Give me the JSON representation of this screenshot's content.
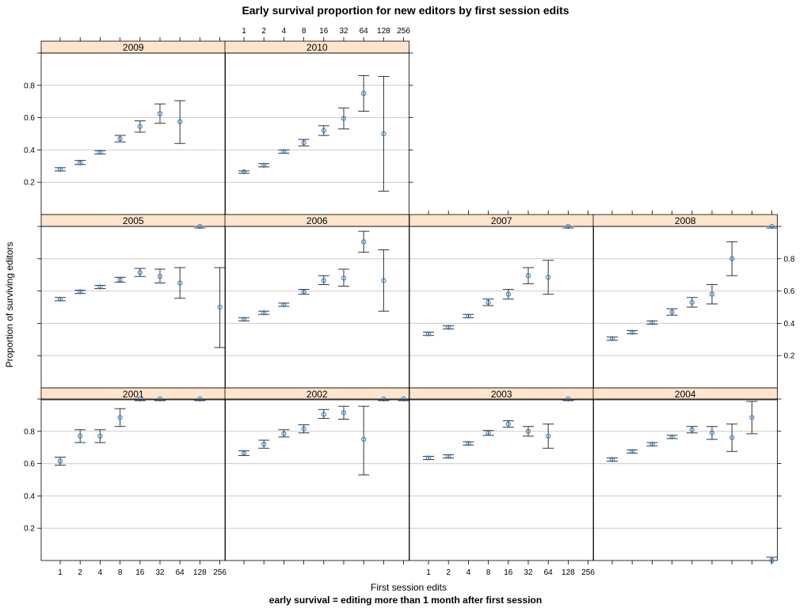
{
  "chart_data": {
    "type": "scatter",
    "title": "Early survival proportion for new editors by first session edits",
    "xlabel": "First session edits",
    "ylabel": "Proportion of surviving editors",
    "subtitle": "early survival = editing more than 1 month after first session",
    "x_ticks": [
      "1",
      "2",
      "4",
      "8",
      "16",
      "32",
      "64",
      "128",
      "256"
    ],
    "y_ticks": [
      "0.2",
      "0.4",
      "0.6",
      "0.8"
    ],
    "ylim": [
      0,
      1
    ],
    "grid": true,
    "point_color": "#1f78d2",
    "strip_color": "#ffe5cc",
    "panels": [
      {
        "year": "2009",
        "points": [
          {
            "x": "1",
            "y": 0.28,
            "lo": 0.27,
            "hi": 0.29
          },
          {
            "x": "2",
            "y": 0.32,
            "lo": 0.31,
            "hi": 0.335
          },
          {
            "x": "4",
            "y": 0.385,
            "lo": 0.375,
            "hi": 0.395
          },
          {
            "x": "8",
            "y": 0.47,
            "lo": 0.45,
            "hi": 0.49
          },
          {
            "x": "16",
            "y": 0.545,
            "lo": 0.51,
            "hi": 0.58
          },
          {
            "x": "32",
            "y": 0.625,
            "lo": 0.565,
            "hi": 0.685
          },
          {
            "x": "64",
            "y": 0.575,
            "lo": 0.44,
            "hi": 0.705
          }
        ]
      },
      {
        "year": "2010",
        "points": [
          {
            "x": "1",
            "y": 0.265,
            "lo": 0.255,
            "hi": 0.27
          },
          {
            "x": "2",
            "y": 0.305,
            "lo": 0.295,
            "hi": 0.315
          },
          {
            "x": "4",
            "y": 0.39,
            "lo": 0.38,
            "hi": 0.4
          },
          {
            "x": "8",
            "y": 0.445,
            "lo": 0.425,
            "hi": 0.465
          },
          {
            "x": "16",
            "y": 0.52,
            "lo": 0.49,
            "hi": 0.55
          },
          {
            "x": "32",
            "y": 0.595,
            "lo": 0.53,
            "hi": 0.66
          },
          {
            "x": "64",
            "y": 0.75,
            "lo": 0.64,
            "hi": 0.86
          },
          {
            "x": "128",
            "y": 0.5,
            "lo": 0.145,
            "hi": 0.855
          }
        ]
      },
      {
        "year": "2005",
        "points": [
          {
            "x": "1",
            "y": 0.55,
            "lo": 0.54,
            "hi": 0.56
          },
          {
            "x": "2",
            "y": 0.595,
            "lo": 0.585,
            "hi": 0.605
          },
          {
            "x": "4",
            "y": 0.625,
            "lo": 0.615,
            "hi": 0.635
          },
          {
            "x": "8",
            "y": 0.67,
            "lo": 0.655,
            "hi": 0.685
          },
          {
            "x": "16",
            "y": 0.715,
            "lo": 0.69,
            "hi": 0.74
          },
          {
            "x": "32",
            "y": 0.69,
            "lo": 0.65,
            "hi": 0.735
          },
          {
            "x": "64",
            "y": 0.65,
            "lo": 0.555,
            "hi": 0.745
          },
          {
            "x": "128",
            "y": 1.0,
            "lo": 0.99,
            "hi": 1.0
          },
          {
            "x": "256",
            "y": 0.5,
            "lo": 0.25,
            "hi": 0.745
          }
        ]
      },
      {
        "year": "2006",
        "points": [
          {
            "x": "1",
            "y": 0.425,
            "lo": 0.415,
            "hi": 0.435
          },
          {
            "x": "2",
            "y": 0.465,
            "lo": 0.455,
            "hi": 0.475
          },
          {
            "x": "4",
            "y": 0.515,
            "lo": 0.505,
            "hi": 0.525
          },
          {
            "x": "8",
            "y": 0.595,
            "lo": 0.58,
            "hi": 0.61
          },
          {
            "x": "16",
            "y": 0.665,
            "lo": 0.64,
            "hi": 0.695
          },
          {
            "x": "32",
            "y": 0.68,
            "lo": 0.63,
            "hi": 0.735
          },
          {
            "x": "64",
            "y": 0.905,
            "lo": 0.84,
            "hi": 0.97
          },
          {
            "x": "128",
            "y": 0.665,
            "lo": 0.475,
            "hi": 0.855
          }
        ]
      },
      {
        "year": "2007",
        "points": [
          {
            "x": "1",
            "y": 0.335,
            "lo": 0.325,
            "hi": 0.345
          },
          {
            "x": "2",
            "y": 0.375,
            "lo": 0.365,
            "hi": 0.385
          },
          {
            "x": "4",
            "y": 0.445,
            "lo": 0.435,
            "hi": 0.455
          },
          {
            "x": "8",
            "y": 0.53,
            "lo": 0.51,
            "hi": 0.55
          },
          {
            "x": "16",
            "y": 0.58,
            "lo": 0.55,
            "hi": 0.61
          },
          {
            "x": "32",
            "y": 0.695,
            "lo": 0.645,
            "hi": 0.745
          },
          {
            "x": "64",
            "y": 0.685,
            "lo": 0.58,
            "hi": 0.79
          },
          {
            "x": "128",
            "y": 1.0,
            "lo": 0.99,
            "hi": 1.0
          }
        ]
      },
      {
        "year": "2008",
        "points": [
          {
            "x": "1",
            "y": 0.305,
            "lo": 0.295,
            "hi": 0.315
          },
          {
            "x": "2",
            "y": 0.345,
            "lo": 0.335,
            "hi": 0.355
          },
          {
            "x": "4",
            "y": 0.405,
            "lo": 0.395,
            "hi": 0.415
          },
          {
            "x": "8",
            "y": 0.47,
            "lo": 0.45,
            "hi": 0.49
          },
          {
            "x": "16",
            "y": 0.53,
            "lo": 0.5,
            "hi": 0.56
          },
          {
            "x": "32",
            "y": 0.58,
            "lo": 0.52,
            "hi": 0.64
          },
          {
            "x": "64",
            "y": 0.8,
            "lo": 0.695,
            "hi": 0.905
          },
          {
            "x": "256",
            "y": 1.0,
            "lo": 0.99,
            "hi": 1.0
          }
        ]
      },
      {
        "year": "2001",
        "points": [
          {
            "x": "1",
            "y": 0.615,
            "lo": 0.59,
            "hi": 0.64
          },
          {
            "x": "2",
            "y": 0.77,
            "lo": 0.73,
            "hi": 0.81
          },
          {
            "x": "4",
            "y": 0.77,
            "lo": 0.73,
            "hi": 0.81
          },
          {
            "x": "8",
            "y": 0.885,
            "lo": 0.83,
            "hi": 0.94
          },
          {
            "x": "16",
            "y": 1.0,
            "lo": 0.99,
            "hi": 1.0
          },
          {
            "x": "32",
            "y": 1.0,
            "lo": 0.99,
            "hi": 1.0
          },
          {
            "x": "128",
            "y": 1.0,
            "lo": 0.99,
            "hi": 1.0
          }
        ]
      },
      {
        "year": "2002",
        "points": [
          {
            "x": "1",
            "y": 0.665,
            "lo": 0.65,
            "hi": 0.68
          },
          {
            "x": "2",
            "y": 0.72,
            "lo": 0.695,
            "hi": 0.745
          },
          {
            "x": "4",
            "y": 0.785,
            "lo": 0.765,
            "hi": 0.81
          },
          {
            "x": "8",
            "y": 0.815,
            "lo": 0.79,
            "hi": 0.84
          },
          {
            "x": "16",
            "y": 0.905,
            "lo": 0.88,
            "hi": 0.935
          },
          {
            "x": "32",
            "y": 0.915,
            "lo": 0.875,
            "hi": 0.955
          },
          {
            "x": "64",
            "y": 0.75,
            "lo": 0.53,
            "hi": 0.955
          },
          {
            "x": "128",
            "y": 1.0,
            "lo": 0.99,
            "hi": 1.0
          },
          {
            "x": "256",
            "y": 1.0,
            "lo": 0.99,
            "hi": 1.0
          }
        ]
      },
      {
        "year": "2003",
        "points": [
          {
            "x": "1",
            "y": 0.635,
            "lo": 0.625,
            "hi": 0.645
          },
          {
            "x": "2",
            "y": 0.645,
            "lo": 0.635,
            "hi": 0.655
          },
          {
            "x": "4",
            "y": 0.725,
            "lo": 0.715,
            "hi": 0.735
          },
          {
            "x": "8",
            "y": 0.79,
            "lo": 0.775,
            "hi": 0.805
          },
          {
            "x": "16",
            "y": 0.845,
            "lo": 0.825,
            "hi": 0.865
          },
          {
            "x": "32",
            "y": 0.8,
            "lo": 0.77,
            "hi": 0.83
          },
          {
            "x": "64",
            "y": 0.77,
            "lo": 0.695,
            "hi": 0.845
          },
          {
            "x": "128",
            "y": 1.0,
            "lo": 0.99,
            "hi": 1.0
          }
        ]
      },
      {
        "year": "2004",
        "points": [
          {
            "x": "1",
            "y": 0.625,
            "lo": 0.615,
            "hi": 0.635
          },
          {
            "x": "2",
            "y": 0.675,
            "lo": 0.665,
            "hi": 0.685
          },
          {
            "x": "4",
            "y": 0.72,
            "lo": 0.71,
            "hi": 0.73
          },
          {
            "x": "8",
            "y": 0.765,
            "lo": 0.755,
            "hi": 0.775
          },
          {
            "x": "16",
            "y": 0.81,
            "lo": 0.79,
            "hi": 0.83
          },
          {
            "x": "32",
            "y": 0.79,
            "lo": 0.75,
            "hi": 0.83
          },
          {
            "x": "64",
            "y": 0.76,
            "lo": 0.675,
            "hi": 0.845
          },
          {
            "x": "128",
            "y": 0.885,
            "lo": 0.785,
            "hi": 0.985
          },
          {
            "x": "256",
            "y": 0.0,
            "lo": 0.0,
            "hi": 0.02
          }
        ]
      }
    ]
  }
}
